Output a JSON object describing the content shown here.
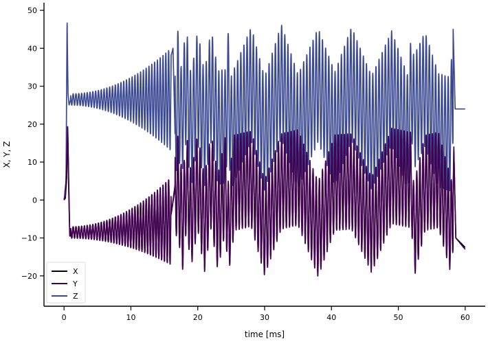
{
  "chart_data": {
    "type": "line",
    "xlabel": "time [ms]",
    "ylabel": "X, Y, Z",
    "xlim": [
      -3,
      63
    ],
    "ylim": [
      -28,
      52
    ],
    "xticks": [
      0,
      10,
      20,
      30,
      40,
      50,
      60
    ],
    "yticks": [
      -20,
      -10,
      0,
      10,
      20,
      30,
      40,
      50
    ],
    "xtick_labels": [
      "0",
      "10",
      "20",
      "30",
      "40",
      "50",
      "60"
    ],
    "ytick_labels": [
      "−20",
      "−10",
      "0",
      "10",
      "20",
      "30",
      "40",
      "50"
    ],
    "grid": false,
    "legend_position": "bottom-left",
    "legend_labels": [
      "X",
      "Y",
      "Z"
    ],
    "series_colors": [
      "#000000",
      "#440154",
      "#3b4992"
    ],
    "series": [
      {
        "name": "X",
        "x": [
          0,
          0.2,
          0.4,
          0.55,
          0.7,
          0.85,
          1.0,
          16,
          16.6,
          17.0,
          17.4,
          17.8,
          18.3,
          19.0,
          20.0,
          21.0,
          22.0,
          23.0,
          24.2,
          24.5,
          25.5,
          28.0,
          30.0,
          32.5,
          35.0,
          38.0,
          40.5,
          43.0,
          46.0,
          49.0,
          52.0,
          52.3,
          54.0,
          56.0,
          58.0,
          58.3,
          58.6,
          60.0
        ],
        "y": [
          0,
          0.5,
          6,
          19,
          5,
          -9,
          -9.5,
          -4,
          3,
          13,
          -5,
          -17,
          14,
          -14,
          13,
          -18,
          14,
          -16,
          13,
          -24,
          12,
          15,
          -20,
          13,
          16,
          -21,
          12,
          13,
          -18,
          17,
          14,
          -24,
          12,
          14,
          -21,
          13,
          -10,
          -12.5
        ]
      },
      {
        "name": "Y",
        "x": [
          0,
          0.2,
          0.4,
          0.55,
          0.7,
          0.85,
          1.0,
          16,
          16.6,
          17.0,
          17.4,
          17.8,
          18.3,
          19.0,
          20.0,
          21.0,
          22.0,
          23.0,
          24.2,
          24.5,
          25.5,
          28.0,
          30.0,
          32.5,
          35.0,
          38.0,
          40.5,
          43.0,
          46.0,
          49.0,
          52.0,
          52.3,
          54.0,
          56.0,
          58.0,
          58.3,
          58.6,
          60.0
        ],
        "y": [
          0,
          1,
          10,
          20,
          2,
          -9.5,
          -9.5,
          -4,
          4,
          14,
          -6,
          -18,
          15,
          -15,
          14,
          -19,
          15,
          -17,
          14,
          -24,
          13,
          16,
          -21,
          14,
          17,
          -22,
          13,
          14,
          -19,
          18,
          15,
          -24,
          13,
          15,
          -22,
          14,
          -10,
          -13
        ]
      },
      {
        "name": "Z",
        "x": [
          0,
          0.3,
          0.45,
          0.6,
          0.75,
          1.0,
          16,
          16.3,
          16.7,
          17.0,
          17.5,
          18.3,
          19.0,
          20.0,
          21.0,
          22.0,
          23.0,
          24.2,
          24.5,
          25.0,
          28.0,
          30.0,
          32.5,
          35.0,
          38.0,
          40.5,
          43.0,
          46.0,
          49.0,
          51.5,
          52.0,
          52.3,
          54.0,
          56.0,
          57.8,
          58.2,
          58.5,
          60.0
        ],
        "y": [
          0,
          5,
          48,
          28,
          25,
          26.5,
          38,
          40,
          10,
          42,
          13,
          43,
          6,
          41,
          8,
          42,
          10,
          11,
          42,
          6,
          43,
          5,
          45,
          7,
          42,
          9,
          43,
          6,
          40,
          5,
          45,
          21,
          39,
          8,
          5,
          45,
          24,
          24
        ]
      }
    ]
  }
}
